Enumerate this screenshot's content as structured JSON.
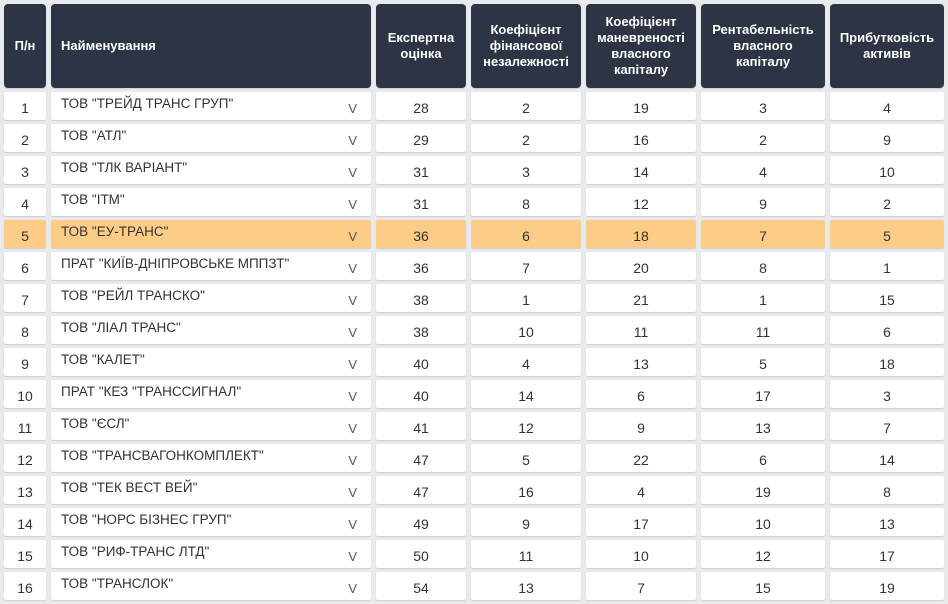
{
  "headers": {
    "num": "П/н",
    "name": "Найменування",
    "expert": "Експертна оцінка",
    "fin": "Коефіцієнт фінансової незалежності",
    "man": "Коефіцієнт маневреності власного капіталу",
    "ren": "Рентабельність власного капіталу",
    "pri": "Прибутковість активів"
  },
  "expand_glyph": "V",
  "highlight_color": "#fdcc87",
  "header_color": "#2d3443",
  "rows": [
    {
      "num": "1",
      "name": "ТОВ \"ТРЕЙД ТРАНС ГРУП\"",
      "expert": "28",
      "fin": "2",
      "man": "19",
      "ren": "3",
      "pri": "4"
    },
    {
      "num": "2",
      "name": "ТОВ \"АТЛ\"",
      "expert": "29",
      "fin": "2",
      "man": "16",
      "ren": "2",
      "pri": "9"
    },
    {
      "num": "3",
      "name": "ТОВ \"ТЛК ВАРІАНТ\"",
      "expert": "31",
      "fin": "3",
      "man": "14",
      "ren": "4",
      "pri": "10"
    },
    {
      "num": "4",
      "name": "ТОВ \"ІТМ\"",
      "expert": "31",
      "fin": "8",
      "man": "12",
      "ren": "9",
      "pri": "2"
    },
    {
      "num": "5",
      "name": "ТОВ \"ЕУ-ТРАНС\"",
      "expert": "36",
      "fin": "6",
      "man": "18",
      "ren": "7",
      "pri": "5",
      "highlight": true
    },
    {
      "num": "6",
      "name": "ПРАТ \"КИЇВ-ДНІПРОВСЬКЕ МППЗТ\"",
      "expert": "36",
      "fin": "7",
      "man": "20",
      "ren": "8",
      "pri": "1"
    },
    {
      "num": "7",
      "name": "ТОВ \"РЕЙЛ ТРАНСКО\"",
      "expert": "38",
      "fin": "1",
      "man": "21",
      "ren": "1",
      "pri": "15"
    },
    {
      "num": "8",
      "name": "ТОВ \"ЛІАЛ ТРАНС\"",
      "expert": "38",
      "fin": "10",
      "man": "11",
      "ren": "11",
      "pri": "6"
    },
    {
      "num": "9",
      "name": "ТОВ \"КАЛЕТ\"",
      "expert": "40",
      "fin": "4",
      "man": "13",
      "ren": "5",
      "pri": "18"
    },
    {
      "num": "10",
      "name": "ПРАТ \"КЕЗ \"ТРАНССИГНАЛ\"",
      "expert": "40",
      "fin": "14",
      "man": "6",
      "ren": "17",
      "pri": "3"
    },
    {
      "num": "11",
      "name": "ТОВ \"ЄСЛ\"",
      "expert": "41",
      "fin": "12",
      "man": "9",
      "ren": "13",
      "pri": "7"
    },
    {
      "num": "12",
      "name": "ТОВ \"ТРАНСВАГОНКОМПЛЕКТ\"",
      "expert": "47",
      "fin": "5",
      "man": "22",
      "ren": "6",
      "pri": "14"
    },
    {
      "num": "13",
      "name": "ТОВ \"ТЕК ВЕСТ ВЕЙ\"",
      "expert": "47",
      "fin": "16",
      "man": "4",
      "ren": "19",
      "pri": "8"
    },
    {
      "num": "14",
      "name": "ТОВ \"НОРС БІЗНЕС ГРУП\"",
      "expert": "49",
      "fin": "9",
      "man": "17",
      "ren": "10",
      "pri": "13"
    },
    {
      "num": "15",
      "name": "ТОВ \"РИФ-ТРАНС ЛТД\"",
      "expert": "50",
      "fin": "11",
      "man": "10",
      "ren": "12",
      "pri": "17"
    },
    {
      "num": "16",
      "name": "ТОВ \"ТРАНСЛОК\"",
      "expert": "54",
      "fin": "13",
      "man": "7",
      "ren": "15",
      "pri": "19"
    }
  ]
}
